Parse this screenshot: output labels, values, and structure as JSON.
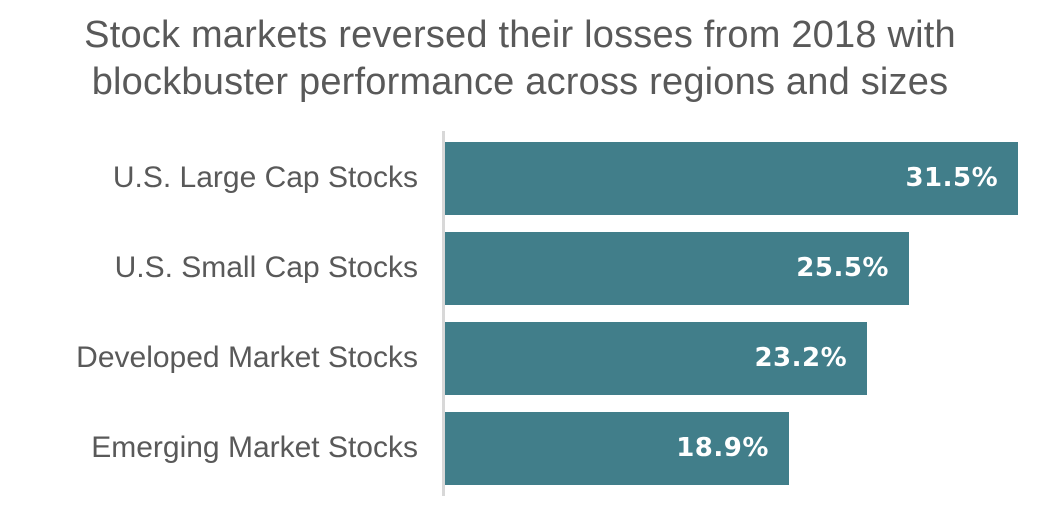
{
  "title": {
    "lines": [
      "Stock markets reversed their losses from 2018 with",
      "blockbuster performance across regions and sizes"
    ]
  },
  "chart_data": {
    "type": "bar",
    "orientation": "horizontal",
    "title": "Stock markets reversed their losses from 2018 with blockbuster performance across regions and sizes",
    "categories": [
      "U.S. Large Cap Stocks",
      "U.S. Small Cap Stocks",
      "Developed Market Stocks",
      "Emerging Market Stocks"
    ],
    "values": [
      31.5,
      25.5,
      23.2,
      18.9
    ],
    "value_labels": [
      "31.5%",
      "25.5%",
      "23.2%",
      "18.9%"
    ],
    "xlabel": "",
    "ylabel": "",
    "xlim": [
      0,
      32.7
    ],
    "grid": false,
    "legend": false,
    "value_labels_position": "inside-end",
    "colors": {
      "bar": "#417e8a",
      "value_text": "#ffffff",
      "category_text": "#595959",
      "title_text": "#595959",
      "axis_line": "#d8d8d8",
      "background": "#ffffff"
    }
  }
}
